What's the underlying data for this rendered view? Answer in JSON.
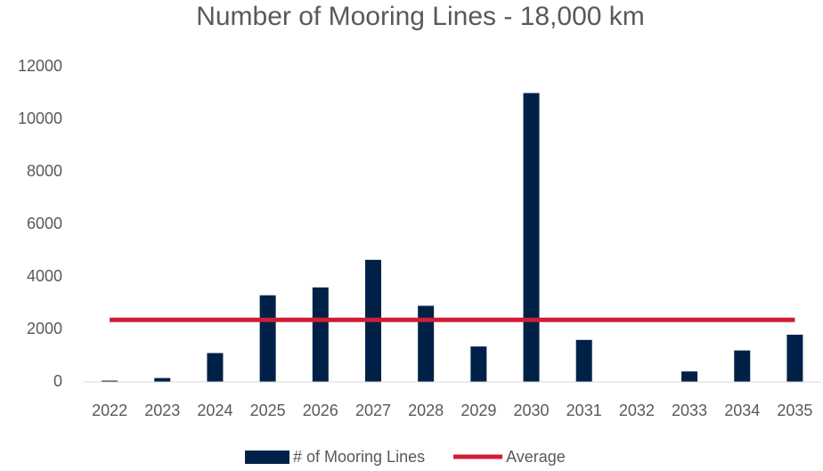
{
  "chart_data": {
    "type": "bar",
    "title": "Number of Mooring Lines - 18,000 km",
    "categories": [
      "2022",
      "2023",
      "2024",
      "2025",
      "2026",
      "2027",
      "2028",
      "2029",
      "2030",
      "2031",
      "2032",
      "2033",
      "2034",
      "2035"
    ],
    "series": [
      {
        "name": "# of Mooring Lines",
        "type": "bar",
        "color": "#002147",
        "values": [
          50,
          150,
          1100,
          3300,
          3600,
          4650,
          2900,
          1350,
          11000,
          1600,
          0,
          400,
          1200,
          1800
        ]
      },
      {
        "name": "Average",
        "type": "line",
        "color": "#d01c35",
        "values": [
          2364,
          2364,
          2364,
          2364,
          2364,
          2364,
          2364,
          2364,
          2364,
          2364,
          2364,
          2364,
          2364,
          2364
        ]
      }
    ],
    "ylim": [
      0,
      12000
    ],
    "yticks": [
      0,
      2000,
      4000,
      6000,
      8000,
      10000,
      12000
    ],
    "grid": false,
    "legend": "bottom"
  }
}
